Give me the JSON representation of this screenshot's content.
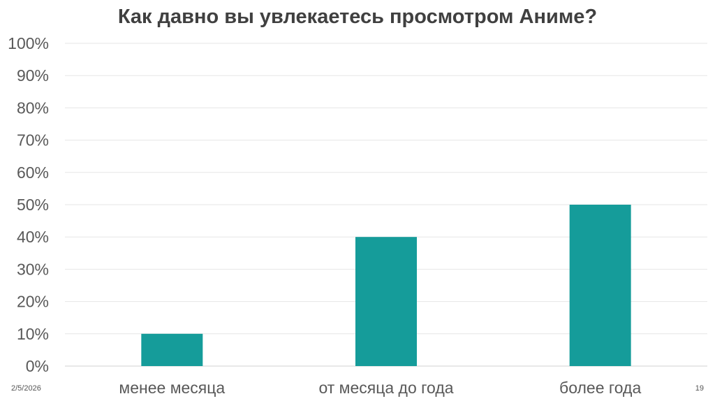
{
  "slide": {
    "date": "2/5/2026",
    "page_number": "19"
  },
  "chart_data": {
    "type": "bar",
    "title": "Как давно вы увлекаетесь просмотром Аниме?",
    "categories": [
      "менее месяца",
      "от месяца до года",
      "более года"
    ],
    "values": [
      10,
      40,
      50
    ],
    "ylim": [
      0,
      100
    ],
    "yticks": [
      "0%",
      "10%",
      "20%",
      "30%",
      "40%",
      "50%",
      "60%",
      "70%",
      "80%",
      "90%",
      "100%"
    ],
    "xlabel": "",
    "ylabel": "",
    "grid": true,
    "legend": "none",
    "bar_color": "#159C9A",
    "grid_color": "#e6e6e6",
    "axis_text_color": "#595959"
  }
}
